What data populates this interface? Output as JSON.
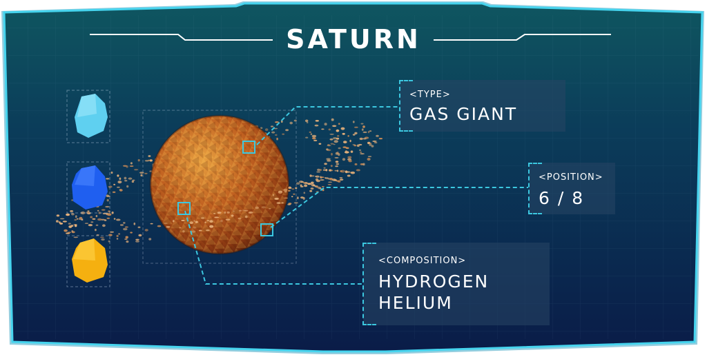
{
  "planet": {
    "name": "SATURN",
    "colors": {
      "base": "#b8561f",
      "highlight": "#e8a83a",
      "shadow": "#6e2a10"
    }
  },
  "info": {
    "type": {
      "label": "<TYPE>",
      "value": "GAS GIANT"
    },
    "position": {
      "label": "<POSITION>",
      "value": "6 / 8"
    },
    "composition": {
      "label": "<COMPOSITION>",
      "lines": [
        "HYDROGEN",
        "HELIUM"
      ]
    }
  },
  "elements": [
    {
      "name": "ice-crystal-icon",
      "color": "#5fd0f0"
    },
    {
      "name": "blue-crystal-icon",
      "color": "#1f5ff0"
    },
    {
      "name": "gold-crystal-icon",
      "color": "#f5b010"
    }
  ],
  "theme": {
    "frame_glow": "#3cc8e0",
    "panel_top": "#0d4a5a",
    "panel_bottom": "#0a1f4a",
    "accent": "#3cc8e0"
  }
}
